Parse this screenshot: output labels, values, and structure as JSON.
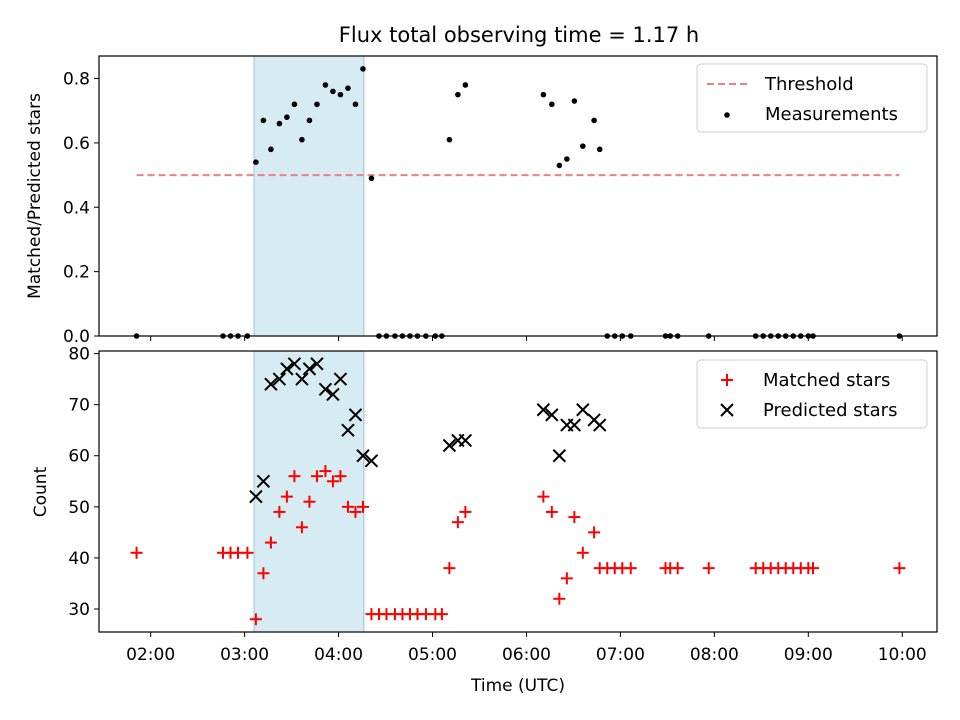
{
  "chart_data": [
    {
      "type": "scatter",
      "title": "Flux total observing time = 1.17 h",
      "xlabel": "",
      "ylabel": "Matched/Predicted stars",
      "ylim": [
        0,
        0.87
      ],
      "yticks": [
        0.0,
        0.2,
        0.4,
        0.6,
        0.8
      ],
      "ytick_labels": [
        "0.0",
        "0.2",
        "0.4",
        "0.6",
        "0.8"
      ],
      "xlim": [
        1.45,
        10.37
      ],
      "highlight_span": [
        3.1,
        4.27
      ],
      "threshold": {
        "label": "Threshold",
        "value": 0.5,
        "x_range": [
          1.85,
          9.97
        ],
        "color": "#f08080"
      },
      "legend": {
        "position": "top-right",
        "entries": [
          "Threshold",
          "Measurements"
        ]
      },
      "series": [
        {
          "name": "Measurements",
          "color": "#000000",
          "x": [
            1.85,
            2.77,
            2.85,
            2.93,
            3.03,
            3.12,
            3.2,
            3.28,
            3.37,
            3.45,
            3.53,
            3.61,
            3.69,
            3.77,
            3.86,
            3.94,
            4.02,
            4.1,
            4.18,
            4.26,
            4.35,
            4.43,
            4.51,
            4.6,
            4.68,
            4.76,
            4.84,
            4.93,
            5.03,
            5.1,
            5.18,
            5.27,
            5.35,
            6.18,
            6.27,
            6.35,
            6.43,
            6.51,
            6.6,
            6.72,
            6.78,
            6.86,
            6.94,
            7.02,
            7.11,
            7.48,
            7.53,
            7.61,
            7.94,
            8.44,
            8.52,
            8.6,
            8.68,
            8.76,
            8.84,
            8.92,
            9.0,
            9.05,
            9.97
          ],
          "y": [
            0,
            0,
            0,
            0,
            0,
            0.54,
            0.67,
            0.58,
            0.66,
            0.68,
            0.72,
            0.61,
            0.67,
            0.72,
            0.78,
            0.76,
            0.75,
            0.77,
            0.72,
            0.83,
            0.49,
            0,
            0,
            0,
            0,
            0,
            0,
            0,
            0,
            0,
            0.61,
            0.75,
            0.78,
            0.75,
            0.72,
            0.53,
            0.55,
            0.73,
            0.59,
            0.67,
            0.58,
            0,
            0,
            0,
            0,
            0,
            0,
            0,
            0,
            0,
            0,
            0,
            0,
            0,
            0,
            0,
            0,
            0,
            0
          ]
        }
      ]
    },
    {
      "type": "scatter",
      "title": "",
      "xlabel": "Time (UTC)",
      "ylabel": "Count",
      "ylim": [
        25.5,
        80.5
      ],
      "yticks": [
        30,
        40,
        50,
        60,
        70,
        80
      ],
      "ytick_labels": [
        "30",
        "40",
        "50",
        "60",
        "70",
        "80"
      ],
      "xlim": [
        1.45,
        10.37
      ],
      "xticks": [
        2,
        3,
        4,
        5,
        6,
        7,
        8,
        9,
        10
      ],
      "xtick_labels": [
        "02:00",
        "03:00",
        "04:00",
        "05:00",
        "06:00",
        "07:00",
        "08:00",
        "09:00",
        "10:00"
      ],
      "highlight_span": [
        3.1,
        4.27
      ],
      "legend": {
        "position": "top-right",
        "entries": [
          "Matched stars",
          "Predicted stars"
        ]
      },
      "series": [
        {
          "name": "Matched stars",
          "marker": "plus",
          "color": "#ff0000",
          "x": [
            1.85,
            2.77,
            2.85,
            2.93,
            3.03,
            3.12,
            3.2,
            3.28,
            3.37,
            3.45,
            3.53,
            3.61,
            3.69,
            3.77,
            3.86,
            3.94,
            4.02,
            4.1,
            4.18,
            4.26,
            4.35,
            4.43,
            4.51,
            4.6,
            4.68,
            4.76,
            4.84,
            4.93,
            5.03,
            5.1,
            5.18,
            5.27,
            5.35,
            6.18,
            6.27,
            6.35,
            6.43,
            6.51,
            6.6,
            6.72,
            6.78,
            6.86,
            6.94,
            7.02,
            7.11,
            7.48,
            7.53,
            7.61,
            7.94,
            8.44,
            8.52,
            8.6,
            8.68,
            8.76,
            8.84,
            8.92,
            9.0,
            9.05,
            9.97
          ],
          "y": [
            41,
            41,
            41,
            41,
            41,
            28,
            37,
            43,
            49,
            52,
            56,
            46,
            51,
            56,
            57,
            55,
            56,
            50,
            49,
            50,
            29,
            29,
            29,
            29,
            29,
            29,
            29,
            29,
            29,
            29,
            38,
            47,
            49,
            52,
            49,
            32,
            36,
            48,
            41,
            45,
            38,
            38,
            38,
            38,
            38,
            38,
            38,
            38,
            38,
            38,
            38,
            38,
            38,
            38,
            38,
            38,
            38,
            38,
            38
          ]
        },
        {
          "name": "Predicted stars",
          "marker": "x",
          "color": "#000000",
          "x": [
            3.12,
            3.2,
            3.28,
            3.37,
            3.45,
            3.53,
            3.61,
            3.69,
            3.77,
            3.86,
            3.94,
            4.02,
            4.1,
            4.18,
            4.26,
            4.35,
            5.18,
            5.27,
            5.35,
            6.18,
            6.27,
            6.35,
            6.43,
            6.51,
            6.6,
            6.72,
            6.78
          ],
          "y": [
            52,
            55,
            74,
            75,
            77,
            78,
            75,
            77,
            78,
            73,
            72,
            75,
            65,
            68,
            60,
            59,
            62,
            63,
            63,
            69,
            68,
            60,
            66,
            66,
            69,
            67,
            66
          ]
        }
      ]
    }
  ]
}
